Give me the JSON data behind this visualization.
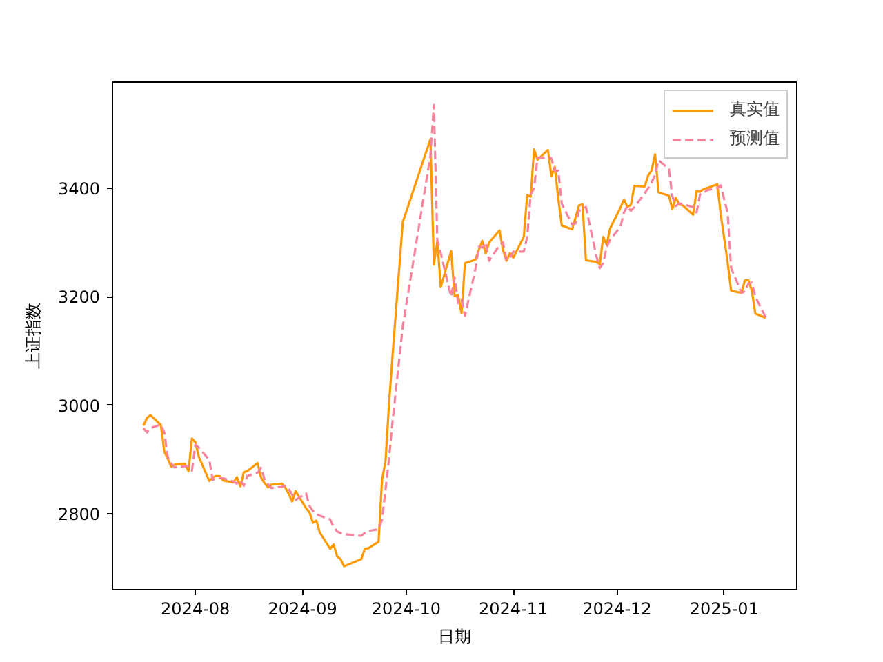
{
  "chart_data": {
    "type": "line",
    "xlabel": "日期",
    "ylabel": "上证指数",
    "x": [
      "2024-07-17",
      "2024-07-18",
      "2024-07-19",
      "2024-07-22",
      "2024-07-23",
      "2024-07-24",
      "2024-07-25",
      "2024-07-26",
      "2024-07-29",
      "2024-07-30",
      "2024-07-31",
      "2024-08-01",
      "2024-08-02",
      "2024-08-05",
      "2024-08-06",
      "2024-08-07",
      "2024-08-08",
      "2024-08-09",
      "2024-08-12",
      "2024-08-13",
      "2024-08-14",
      "2024-08-15",
      "2024-08-16",
      "2024-08-19",
      "2024-08-20",
      "2024-08-21",
      "2024-08-22",
      "2024-08-23",
      "2024-08-26",
      "2024-08-27",
      "2024-08-28",
      "2024-08-29",
      "2024-08-30",
      "2024-09-02",
      "2024-09-03",
      "2024-09-04",
      "2024-09-05",
      "2024-09-06",
      "2024-09-09",
      "2024-09-10",
      "2024-09-11",
      "2024-09-12",
      "2024-09-13",
      "2024-09-18",
      "2024-09-19",
      "2024-09-20",
      "2024-09-23",
      "2024-09-24",
      "2024-09-25",
      "2024-09-26",
      "2024-09-27",
      "2024-09-30",
      "2024-10-08",
      "2024-10-09",
      "2024-10-10",
      "2024-10-11",
      "2024-10-14",
      "2024-10-15",
      "2024-10-16",
      "2024-10-17",
      "2024-10-18",
      "2024-10-21",
      "2024-10-22",
      "2024-10-23",
      "2024-10-24",
      "2024-10-25",
      "2024-10-28",
      "2024-10-29",
      "2024-10-30",
      "2024-10-31",
      "2024-11-01",
      "2024-11-04",
      "2024-11-05",
      "2024-11-06",
      "2024-11-07",
      "2024-11-08",
      "2024-11-11",
      "2024-11-12",
      "2024-11-13",
      "2024-11-14",
      "2024-11-15",
      "2024-11-18",
      "2024-11-19",
      "2024-11-20",
      "2024-11-21",
      "2024-11-22",
      "2024-11-25",
      "2024-11-26",
      "2024-11-27",
      "2024-11-28",
      "2024-11-29",
      "2024-12-02",
      "2024-12-03",
      "2024-12-04",
      "2024-12-05",
      "2024-12-06",
      "2024-12-09",
      "2024-12-10",
      "2024-12-11",
      "2024-12-12",
      "2024-12-13",
      "2024-12-16",
      "2024-12-17",
      "2024-12-18",
      "2024-12-19",
      "2024-12-20",
      "2024-12-23",
      "2024-12-24",
      "2024-12-25",
      "2024-12-26",
      "2024-12-27",
      "2024-12-30",
      "2024-12-31",
      "2025-01-02",
      "2025-01-03",
      "2025-01-06",
      "2025-01-07",
      "2025-01-08",
      "2025-01-09",
      "2025-01-10",
      "2025-01-13"
    ],
    "series": [
      {
        "name": "真实值",
        "color": "#ff9900",
        "line_style": "solid",
        "values": [
          2963,
          2977,
          2982,
          2964,
          2915,
          2902,
          2887,
          2891,
          2892,
          2879,
          2939,
          2932,
          2905,
          2861,
          2867,
          2870,
          2870,
          2862,
          2858,
          2868,
          2851,
          2877,
          2879,
          2894,
          2867,
          2857,
          2849,
          2854,
          2856,
          2849,
          2837,
          2823,
          2842,
          2811,
          2803,
          2784,
          2788,
          2766,
          2736,
          2744,
          2722,
          2717,
          2704,
          2717,
          2736,
          2737,
          2749,
          2863,
          2896,
          3001,
          3088,
          3337,
          3490,
          3259,
          3302,
          3218,
          3284,
          3201,
          3203,
          3169,
          3262,
          3268,
          3286,
          3303,
          3280,
          3300,
          3322,
          3286,
          3266,
          3280,
          3272,
          3310,
          3387,
          3384,
          3471,
          3452,
          3470,
          3422,
          3439,
          3380,
          3331,
          3324,
          3346,
          3368,
          3370,
          3267,
          3264,
          3260,
          3310,
          3296,
          3326,
          3364,
          3379,
          3365,
          3369,
          3404,
          3403,
          3423,
          3432,
          3462,
          3392,
          3386,
          3361,
          3382,
          3370,
          3368,
          3351,
          3394,
          3393,
          3398,
          3400,
          3407,
          3352,
          3263,
          3211,
          3207,
          3230,
          3230,
          3211,
          3169,
          3161
        ]
      },
      {
        "name": "预测值",
        "color": "#f7849c",
        "line_style": "dashed",
        "values": [
          2958,
          2950,
          2958,
          2965,
          2950,
          2905,
          2893,
          2886,
          2888,
          2888,
          2880,
          2928,
          2922,
          2900,
          2863,
          2865,
          2866,
          2866,
          2860,
          2856,
          2862,
          2852,
          2870,
          2876,
          2885,
          2864,
          2855,
          2848,
          2850,
          2852,
          2846,
          2836,
          2826,
          2838,
          2815,
          2806,
          2800,
          2797,
          2790,
          2776,
          2768,
          2765,
          2763,
          2760,
          2765,
          2769,
          2772,
          2790,
          2845,
          2900,
          2968,
          3145,
          3460,
          3553,
          3305,
          3280,
          3200,
          3236,
          3188,
          3195,
          3165,
          3250,
          3292,
          3290,
          3300,
          3266,
          3295,
          3300,
          3268,
          3272,
          3283,
          3283,
          3310,
          3388,
          3400,
          3456,
          3456,
          3455,
          3430,
          3432,
          3371,
          3333,
          3335,
          3358,
          3362,
          3365,
          3275,
          3253,
          3262,
          3291,
          3305,
          3329,
          3355,
          3367,
          3358,
          3365,
          3390,
          3400,
          3410,
          3425,
          3451,
          3435,
          3385,
          3367,
          3372,
          3370,
          3365,
          3355,
          3388,
          3390,
          3396,
          3400,
          3405,
          3354,
          3253,
          3207,
          3210,
          3224,
          3226,
          3200,
          3162
        ]
      }
    ],
    "xlim": [
      "2024-07-08",
      "2025-01-22"
    ],
    "xticks": [
      "2024-08",
      "2024-09",
      "2024-10",
      "2024-11",
      "2024-12",
      "2025-01"
    ],
    "ylim": [
      2661,
      3595
    ],
    "yticks": [
      2800,
      3000,
      3200,
      3400
    ],
    "legend": "top right"
  }
}
